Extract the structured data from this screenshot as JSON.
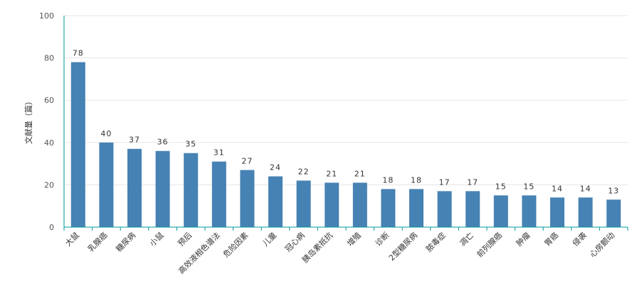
{
  "chart_data": {
    "type": "bar",
    "categories": [
      "大鼠",
      "乳腺癌",
      "糖尿病",
      "小鼠",
      "预后",
      "高效液相色谱法",
      "危险因素",
      "儿童",
      "冠心病",
      "胰岛素抵抗",
      "增殖",
      "诊断",
      "2型糖尿病",
      "脓毒症",
      "凋亡",
      "前列腺癌",
      "肿瘤",
      "胃癌",
      "侵袭",
      "心房颤动"
    ],
    "values": [
      78,
      40,
      37,
      36,
      35,
      31,
      27,
      24,
      22,
      21,
      21,
      18,
      18,
      17,
      17,
      15,
      15,
      14,
      14,
      13
    ],
    "ylabel": "文献量（篇）",
    "xlabel": "",
    "ylim": [
      0,
      100
    ],
    "yticks": [
      0,
      20,
      40,
      60,
      80,
      100
    ],
    "bar_color": "#4682b4",
    "axis_color": "#009999",
    "grid": true,
    "grid_color": "#e5e5e5"
  }
}
